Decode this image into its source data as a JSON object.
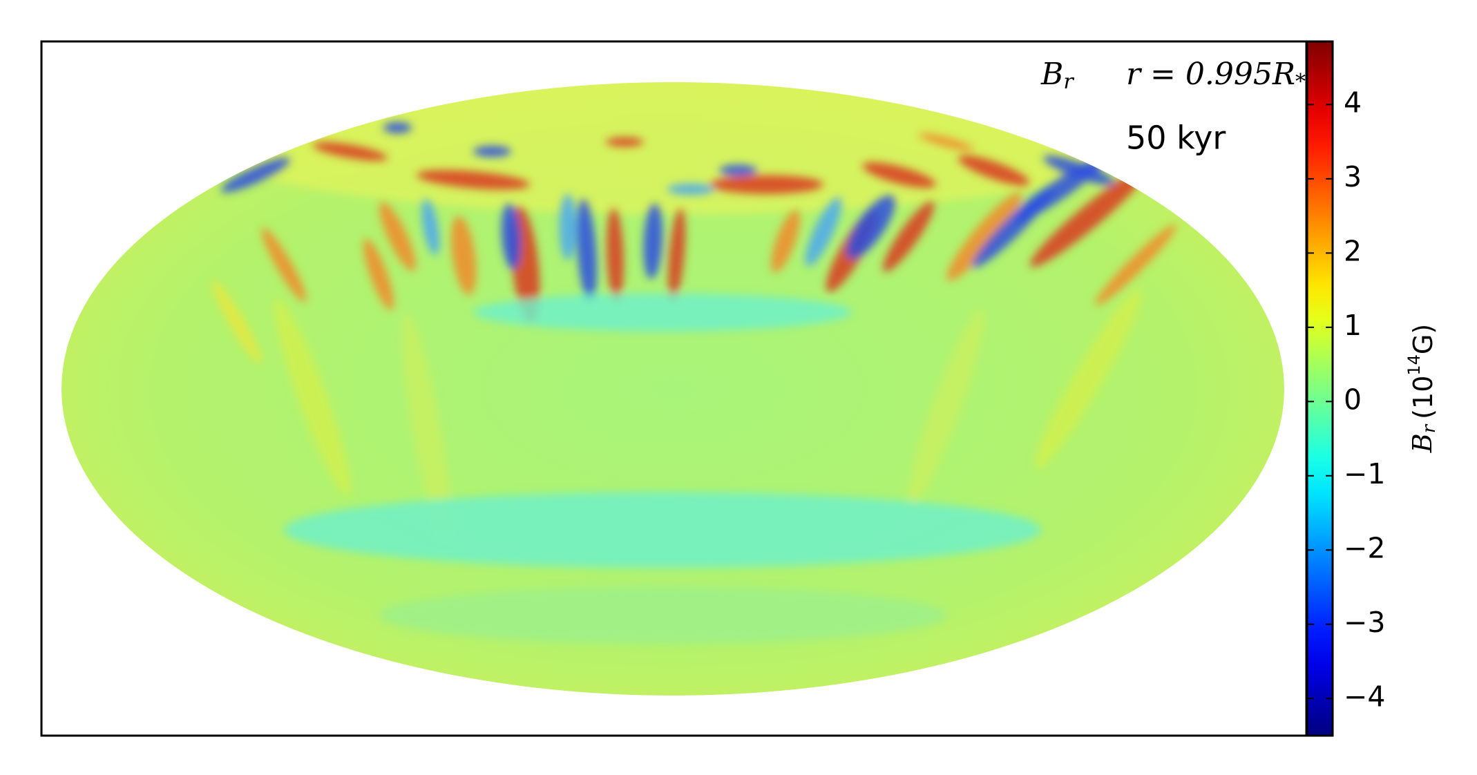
{
  "chart_data": {
    "type": "heatmap",
    "projection": "hammer",
    "colormap": "jet",
    "field": {
      "symbol": "B",
      "subscript": "r"
    },
    "radius": {
      "text": "r = 0.995",
      "symbol": "R",
      "subscript": "*"
    },
    "time": "50 kyr",
    "colorbar": {
      "symbol": "B",
      "subscript": "r",
      "unit_open": "(10",
      "exponent": "14",
      "unit": "G)",
      "lim": [
        -4.5,
        4.85
      ],
      "ticks": [
        {
          "value": -4,
          "label": "−4"
        },
        {
          "value": -3,
          "label": "−3"
        },
        {
          "value": -2,
          "label": "−2"
        },
        {
          "value": -1,
          "label": "−1"
        },
        0,
        1,
        2,
        3,
        4
      ]
    }
  }
}
